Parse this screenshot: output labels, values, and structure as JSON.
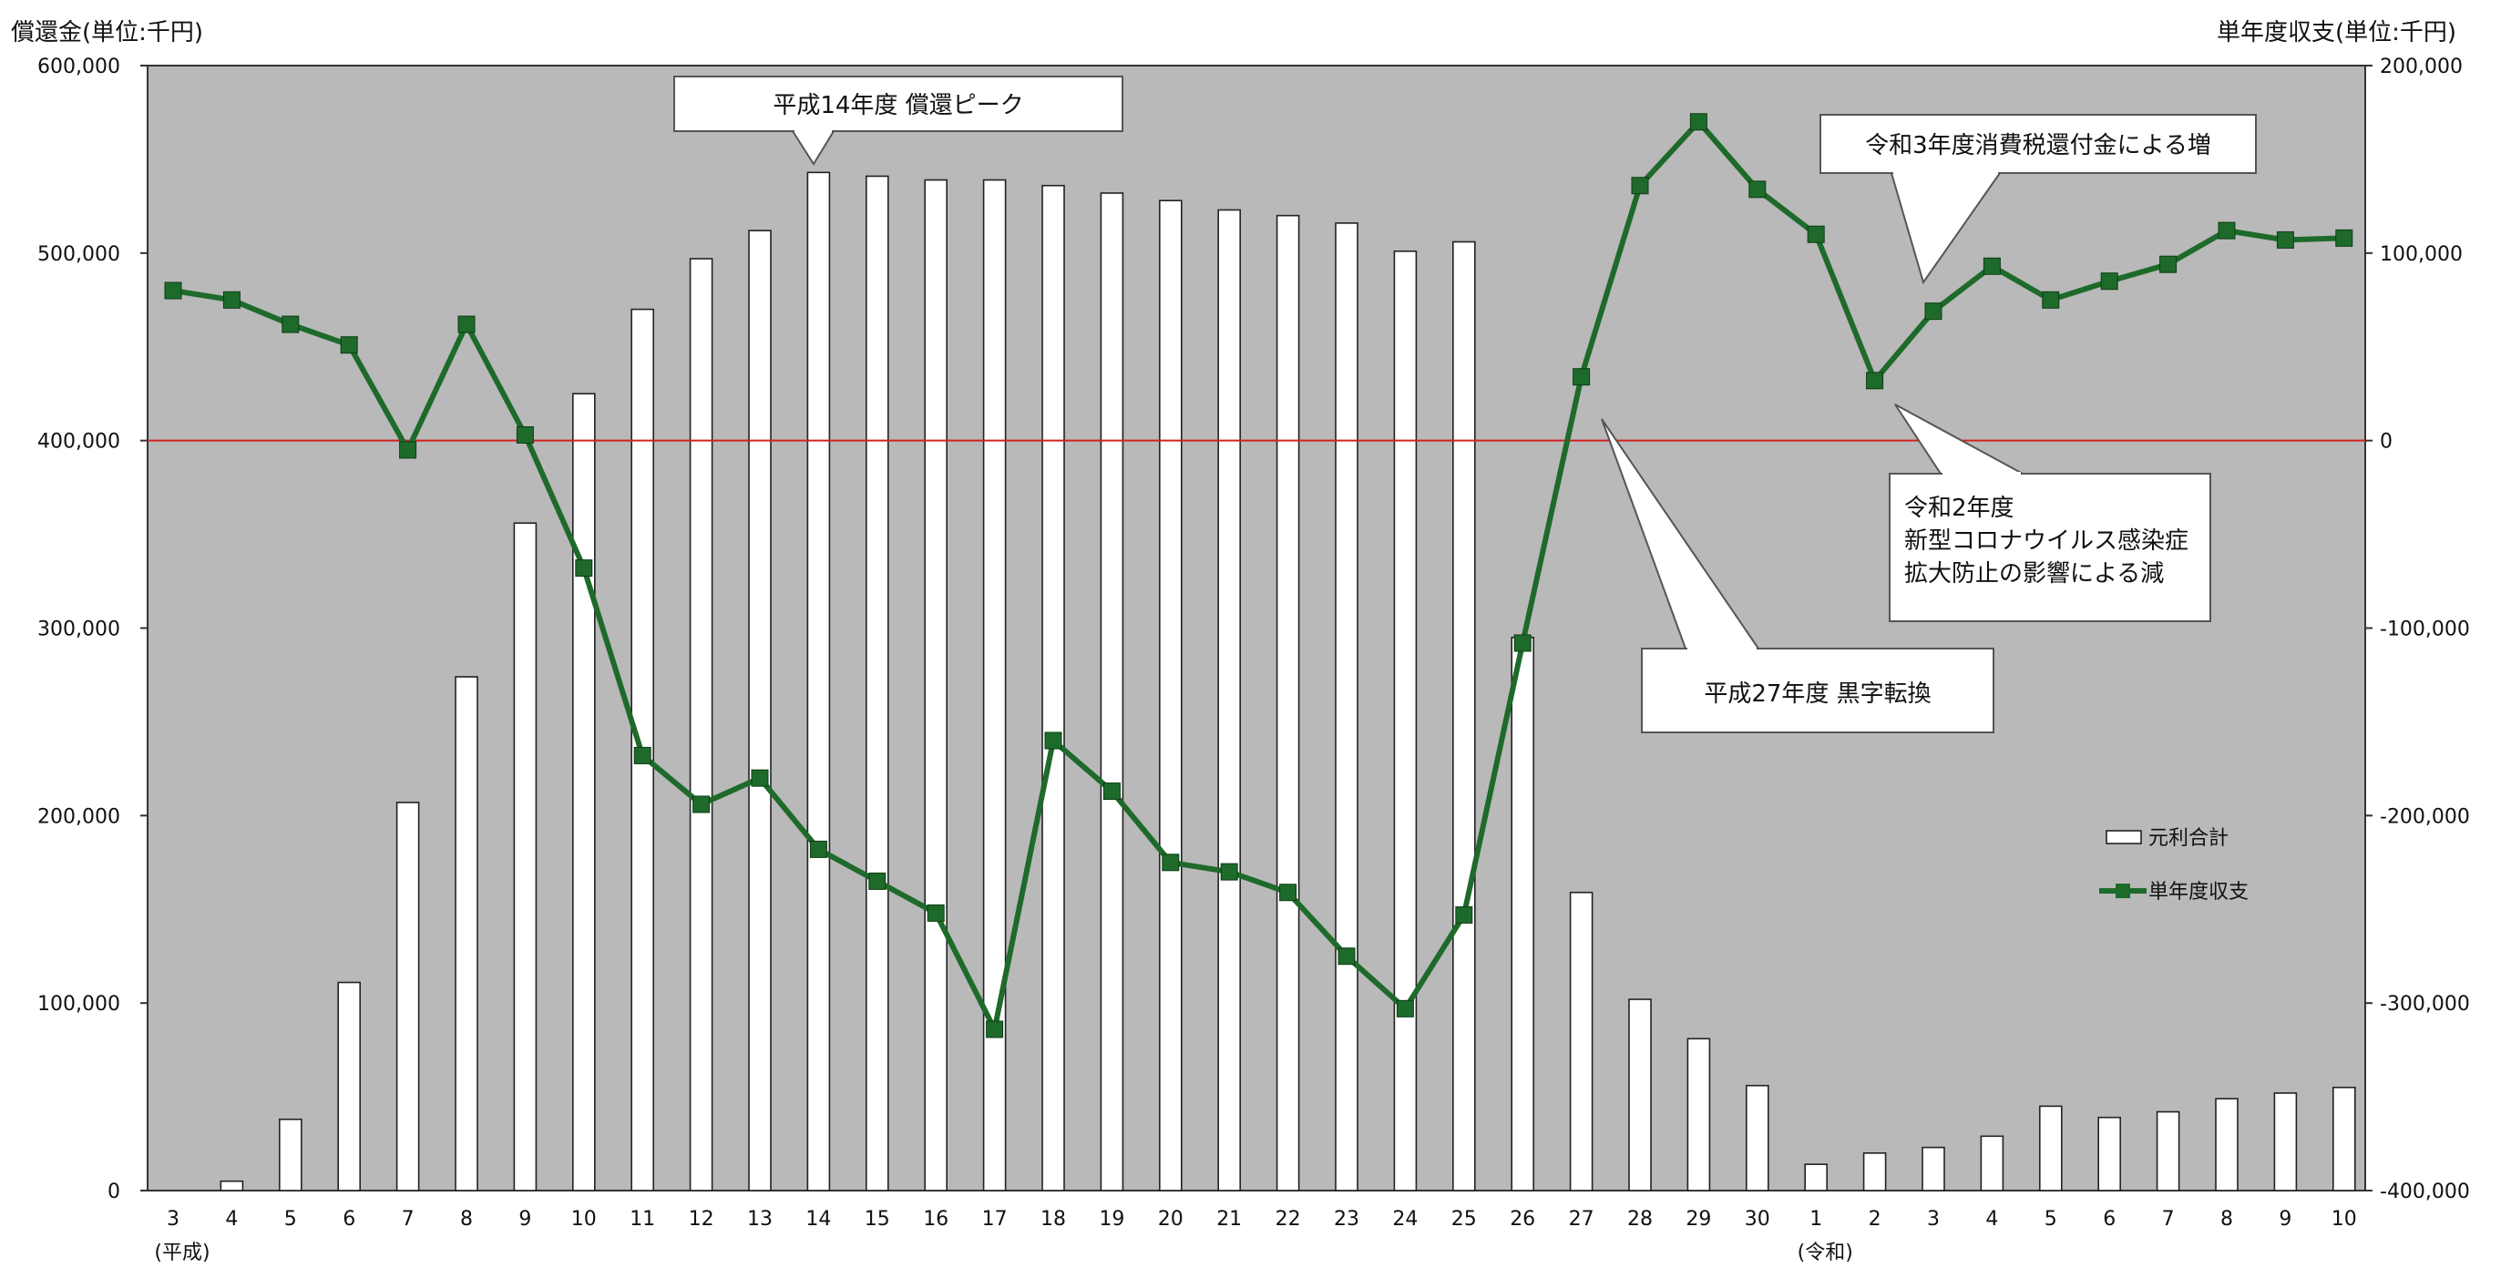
{
  "chart_data": {
    "type": "bar+line",
    "left_axis_title": "償還金(単位:千円)",
    "right_axis_title": "単年度収支(単位:千円)",
    "left_ylim": [
      0,
      600000
    ],
    "right_ylim": [
      -400000,
      200000
    ],
    "left_ticks": [
      "600,000",
      "500,000",
      "400,000",
      "300,000",
      "200,000",
      "100,000",
      "0"
    ],
    "left_tick_values": [
      600000,
      500000,
      400000,
      300000,
      200000,
      100000,
      0
    ],
    "right_ticks": [
      "200,000",
      "100,000",
      "0",
      "-100,000",
      "-200,000",
      "-300,000",
      "-400,000"
    ],
    "right_tick_values": [
      200000,
      100000,
      0,
      -100000,
      -200000,
      -300000,
      -400000
    ],
    "categories": [
      "3",
      "4",
      "5",
      "6",
      "7",
      "8",
      "9",
      "10",
      "11",
      "12",
      "13",
      "14",
      "15",
      "16",
      "17",
      "18",
      "19",
      "20",
      "21",
      "22",
      "23",
      "24",
      "25",
      "26",
      "27",
      "28",
      "29",
      "30",
      "1",
      "2",
      "3",
      "4",
      "5",
      "6",
      "7",
      "8",
      "9",
      "10"
    ],
    "era_labels": [
      {
        "text": "(平成)",
        "at": "3"
      },
      {
        "text": "(令和)",
        "at": "1"
      }
    ],
    "series": [
      {
        "name": "元利合計",
        "type": "bar",
        "axis": "left",
        "color": "#ffffff",
        "values": [
          0,
          5000,
          38000,
          111000,
          207000,
          274000,
          356000,
          425000,
          470000,
          497000,
          512000,
          543000,
          541000,
          539000,
          539000,
          536000,
          532000,
          528000,
          523000,
          520000,
          516000,
          501000,
          506000,
          295000,
          159000,
          102000,
          81000,
          56000,
          14000,
          20000,
          23000,
          29000,
          45000,
          39000,
          42000,
          49000,
          52000,
          55000
        ]
      },
      {
        "name": "単年度収支",
        "type": "line",
        "axis": "right",
        "color": "#1e6a2a",
        "values": [
          80000,
          75000,
          62000,
          51000,
          -5000,
          62000,
          3000,
          -68000,
          -168000,
          -194000,
          -180000,
          -218000,
          -235000,
          -252000,
          -314000,
          -160000,
          -187000,
          -225000,
          -230000,
          -241000,
          -275000,
          -303000,
          -253000,
          -108000,
          34000,
          136000,
          170000,
          134000,
          110000,
          32000,
          69000,
          93000,
          75000,
          85000,
          94000,
          112000,
          107000,
          108000
        ]
      }
    ],
    "reference_line": {
      "axis": "right",
      "value": 0,
      "color": "#d42020"
    },
    "annotations": [
      {
        "text": "平成14年度  償還ピーク",
        "points_to": "14"
      },
      {
        "text": "令和3年度消費税還付金による増",
        "points_to": "3"
      },
      {
        "text": "令和2年度\n新型コロナウイルス感染症\n拡大防止の影響による減",
        "points_to": "2"
      },
      {
        "text": "平成27年度  黒字転換",
        "points_to": "27"
      }
    ],
    "legend": {
      "position": "lower-right",
      "items": [
        {
          "label": "元利合計",
          "series": "元利合計"
        },
        {
          "label": "単年度収支",
          "series": "単年度収支"
        }
      ]
    },
    "plot_background": "#b9b9b9"
  }
}
